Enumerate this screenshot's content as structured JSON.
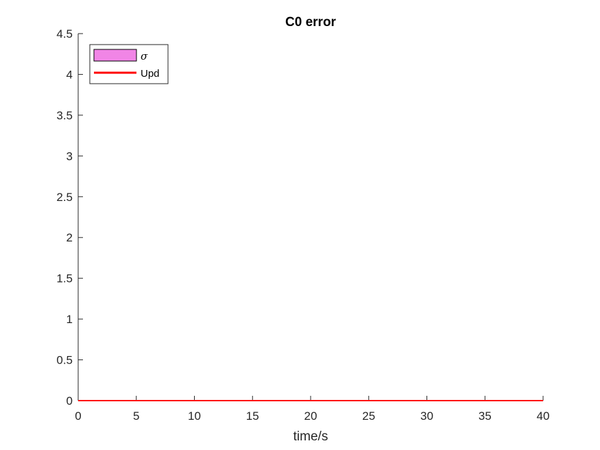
{
  "chart_data": {
    "type": "line",
    "title": "C0 error",
    "xlabel": "time/s",
    "ylabel": "",
    "xlim": [
      0,
      40
    ],
    "ylim": [
      0,
      4.5
    ],
    "xticks": [
      "0",
      "5",
      "10",
      "15",
      "20",
      "25",
      "30",
      "35",
      "40"
    ],
    "yticks": [
      "0",
      "0.5",
      "1",
      "1.5",
      "2",
      "2.5",
      "3",
      "3.5",
      "4",
      "4.5"
    ],
    "grid": false,
    "legend_position": "top-left",
    "series": [
      {
        "name": "σ",
        "kind": "band",
        "color": "#f185e6",
        "x": [
          0,
          40
        ],
        "y": [
          0,
          0
        ]
      },
      {
        "name": "Upd",
        "kind": "line",
        "color": "#ff0000",
        "x": [
          0,
          5,
          10,
          15,
          20,
          25,
          30,
          35,
          40
        ],
        "y": [
          0,
          0,
          0,
          0,
          0,
          0,
          0,
          0,
          0
        ]
      }
    ]
  }
}
